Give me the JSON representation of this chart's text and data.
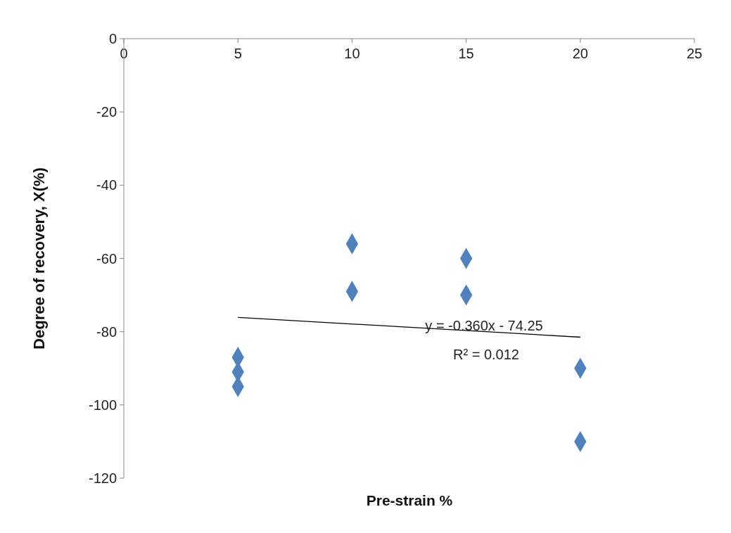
{
  "chart_data": {
    "type": "scatter",
    "xlabel": "Pre-strain %",
    "ylabel": "Degree of recovery, X(%)",
    "xlim": [
      0,
      25
    ],
    "xticks": [
      0,
      5,
      10,
      15,
      20,
      25
    ],
    "ylim": [
      -120,
      0
    ],
    "yticks": [
      -120,
      -100,
      -80,
      -60,
      -40,
      -20,
      0
    ],
    "grid": false,
    "marker": "diamond",
    "series": [
      {
        "color": "#4f81bd",
        "x": [
          5,
          5,
          5,
          10,
          10,
          15,
          15,
          20,
          20
        ],
        "values": [
          -87,
          -91,
          -95,
          -56,
          -69,
          -60,
          -70,
          -90,
          -110
        ]
      },
      {
        "type": "line",
        "color": "#000000",
        "marker": "none",
        "line_style": "solid",
        "x": [
          5,
          20
        ],
        "values": [
          -76.1,
          -81.5
        ]
      }
    ],
    "annotations": [
      "y = -0.360x - 74.25",
      "R² = 0.012"
    ]
  }
}
